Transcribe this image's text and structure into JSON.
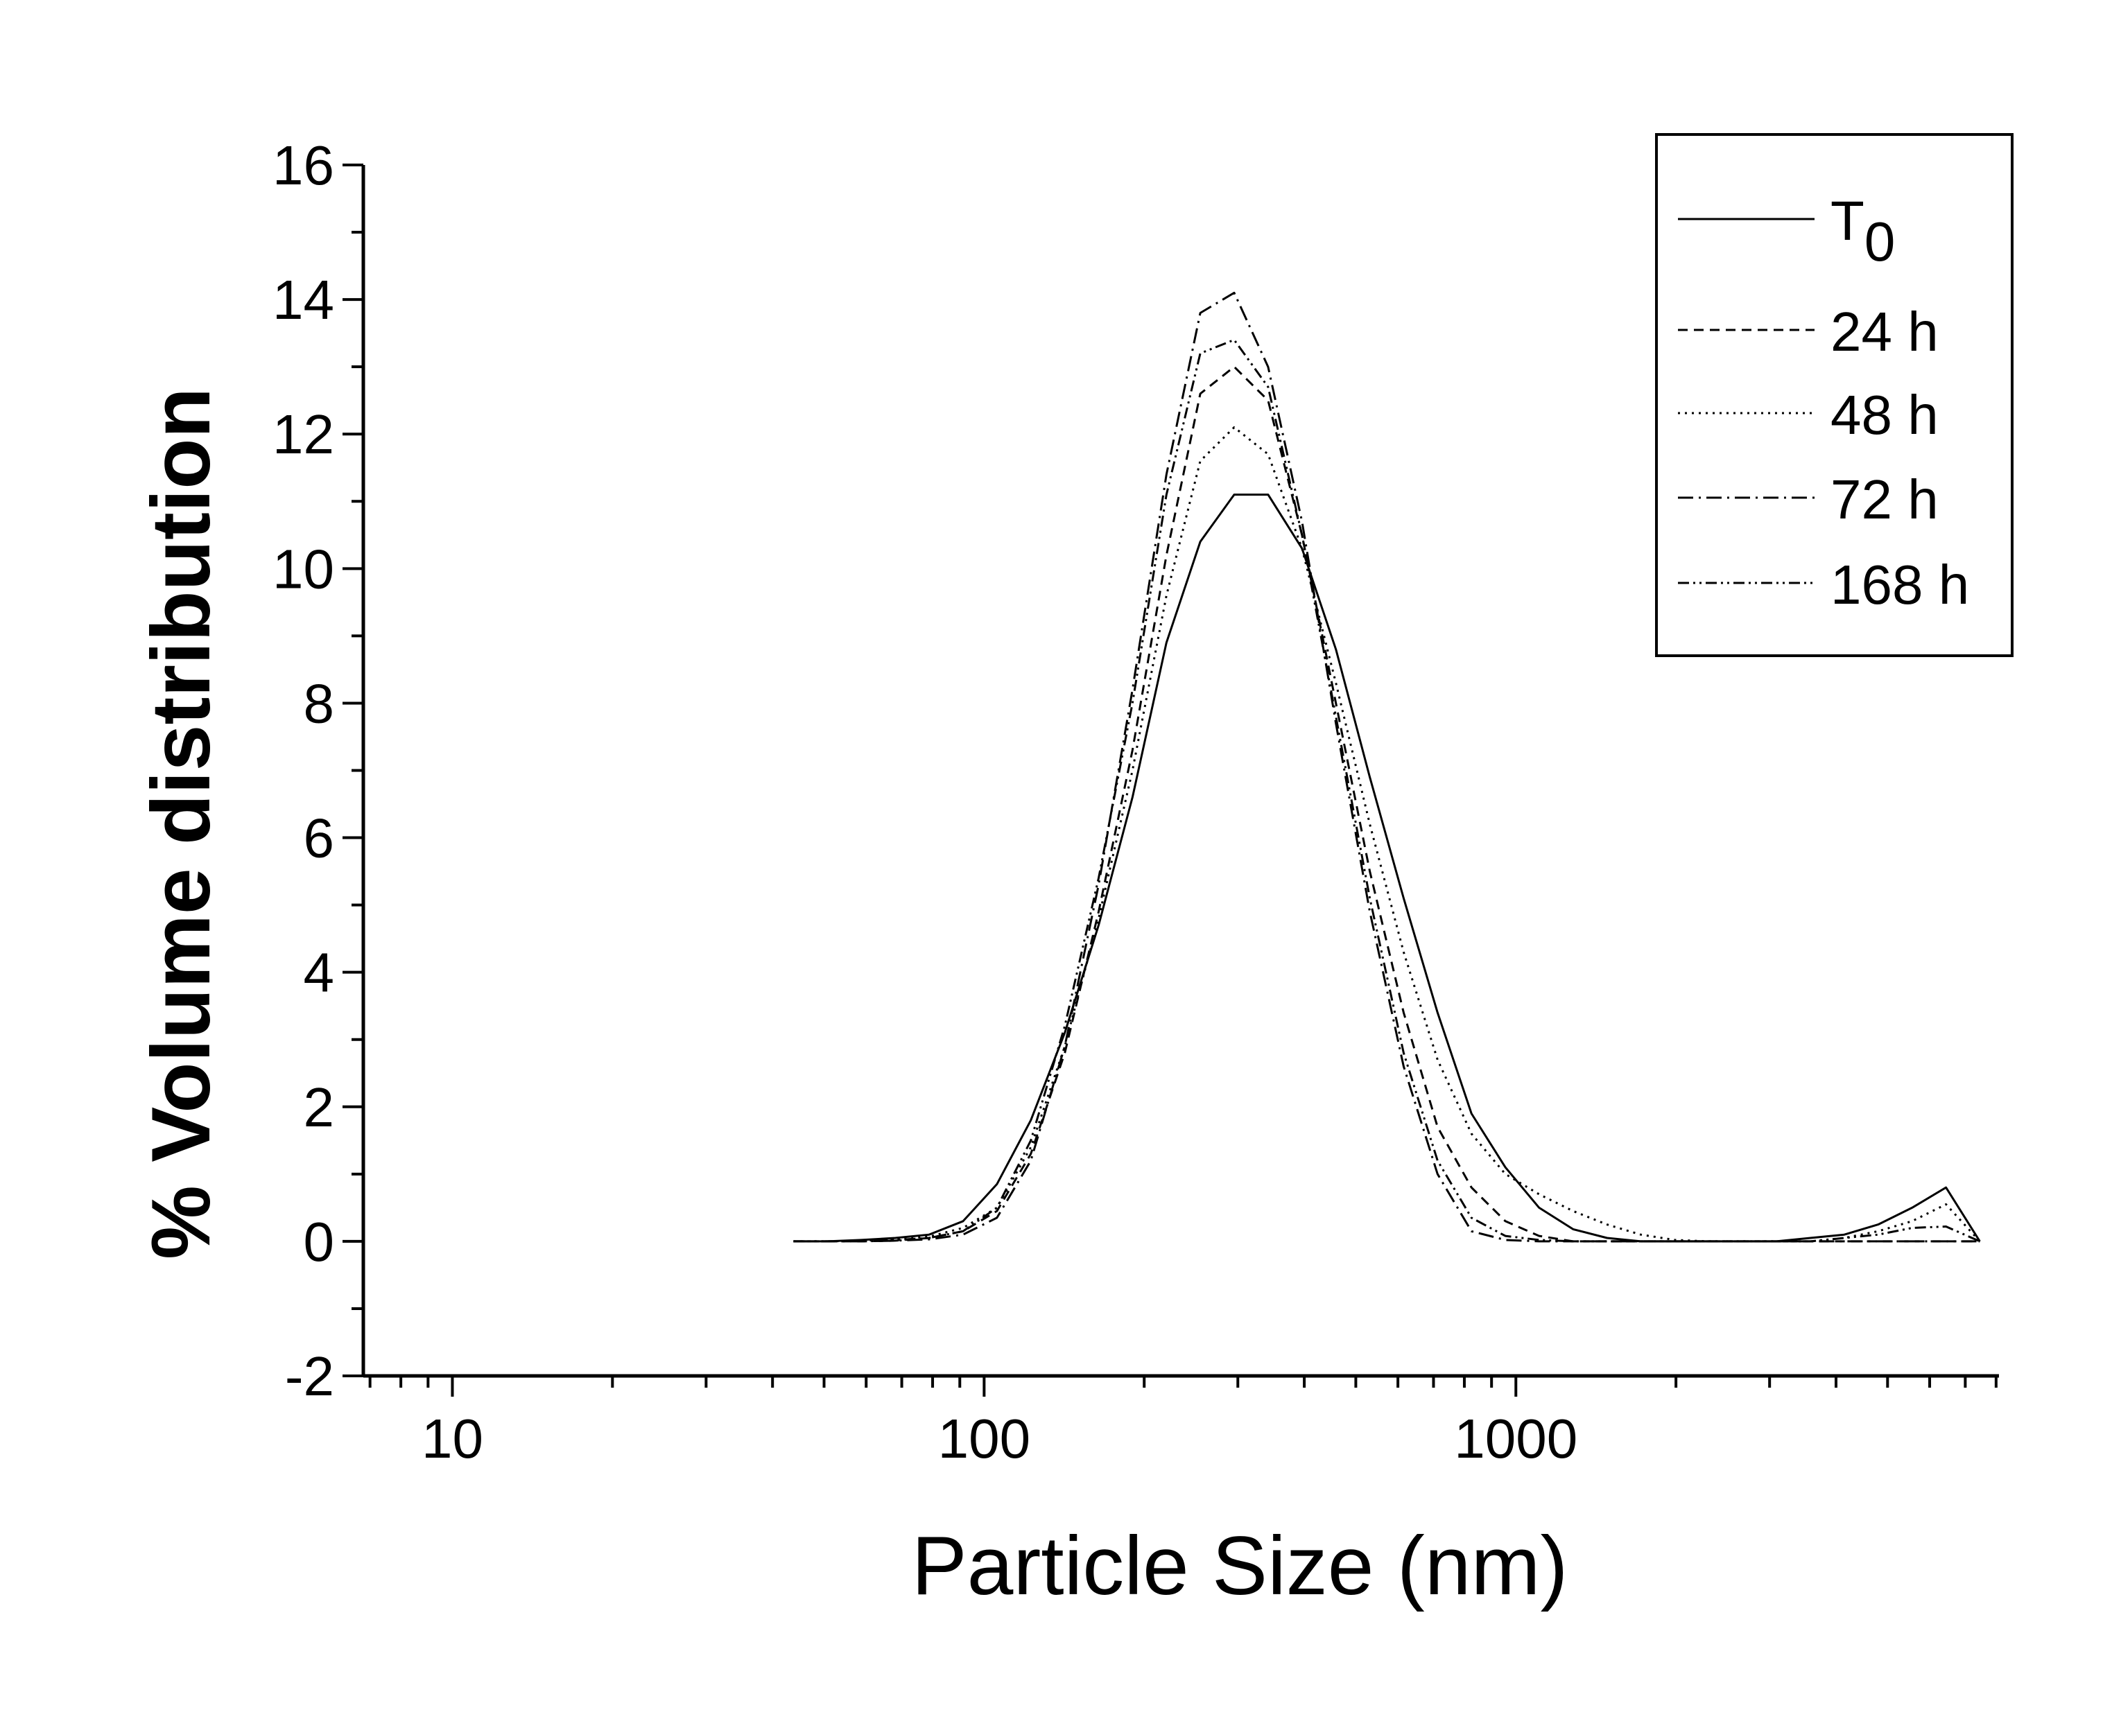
{
  "chart_data": {
    "type": "line",
    "title": "",
    "xlabel": "Particle Size (nm)",
    "ylabel": "% Volume distribution",
    "x_scale": "log",
    "xlim": [
      6.8,
      8100
    ],
    "ylim": [
      -2,
      16
    ],
    "x_ticks": [
      10,
      100,
      1000
    ],
    "x_tick_labels": [
      "10",
      "100",
      "1000"
    ],
    "y_ticks": [
      -2,
      0,
      2,
      4,
      6,
      8,
      10,
      12,
      14,
      16
    ],
    "y_tick_labels": [
      "-2",
      "0",
      "2",
      "4",
      "6",
      "8",
      "10",
      "12",
      "14",
      "16"
    ],
    "grid": false,
    "legend_position": "top-right",
    "x": [
      43.8,
      50.8,
      58.8,
      68.1,
      78.8,
      91.3,
      105.7,
      122.4,
      141.8,
      164.2,
      190.1,
      220.2,
      255,
      295.3,
      342,
      396.1,
      458.7,
      531.2,
      615.1,
      712.4,
      825,
      955.4,
      1106,
      1281,
      1484,
      1718,
      1990,
      2305,
      2669,
      3091,
      3580,
      4145,
      4801,
      5560,
      6439,
      7456
    ],
    "series": [
      {
        "name": "T0",
        "name_main": "T",
        "name_sub": "0",
        "dash": "",
        "values": [
          0,
          0,
          0.02,
          0.05,
          0.1,
          0.3,
          0.85,
          1.8,
          3.1,
          4.7,
          6.6,
          8.9,
          10.4,
          11.1,
          11.1,
          10.3,
          8.8,
          6.9,
          5.1,
          3.4,
          1.9,
          1.1,
          0.5,
          0.18,
          0.05,
          0,
          0,
          0,
          0,
          0,
          0.05,
          0.1,
          0.25,
          0.5,
          0.8,
          0
        ]
      },
      {
        "name": "24 h",
        "dash": "14,9",
        "values": [
          0,
          0,
          0,
          0.01,
          0.05,
          0.15,
          0.45,
          1.3,
          2.8,
          4.9,
          7.3,
          10.2,
          12.6,
          13.0,
          12.5,
          10.5,
          8.0,
          5.5,
          3.4,
          1.7,
          0.8,
          0.3,
          0.08,
          0,
          0,
          0,
          0,
          0,
          0,
          0,
          0,
          0,
          0,
          0,
          0,
          0
        ]
      },
      {
        "name": "48 h",
        "dash": "3,7",
        "values": [
          0,
          0,
          0.01,
          0.03,
          0.07,
          0.2,
          0.5,
          1.4,
          2.9,
          4.8,
          7.0,
          9.6,
          11.6,
          12.1,
          11.7,
          10.3,
          8.3,
          6.2,
          4.3,
          2.7,
          1.6,
          1.0,
          0.7,
          0.45,
          0.25,
          0.1,
          0.02,
          0,
          0,
          0,
          0,
          0.05,
          0.15,
          0.3,
          0.55,
          0
        ]
      },
      {
        "name": "72 h",
        "dash": "22,8,3,8",
        "values": [
          0,
          0,
          0,
          0.01,
          0.03,
          0.1,
          0.35,
          1.2,
          2.9,
          5.3,
          8.2,
          11.4,
          13.8,
          14.1,
          13.0,
          10.7,
          7.7,
          4.9,
          2.6,
          1.0,
          0.15,
          0.02,
          0,
          0,
          0,
          0,
          0,
          0,
          0,
          0,
          0,
          0,
          0,
          0,
          0,
          0
        ]
      },
      {
        "name": "168 h",
        "dash": "16,6,3,6,3,6",
        "values": [
          0,
          0,
          0.01,
          0.02,
          0.05,
          0.15,
          0.5,
          1.5,
          3.2,
          5.4,
          8.0,
          11.1,
          13.2,
          13.4,
          12.7,
          10.5,
          7.8,
          5.1,
          2.8,
          1.2,
          0.35,
          0.08,
          0.02,
          0,
          0,
          0,
          0,
          0,
          0,
          0,
          0,
          0.05,
          0.1,
          0.2,
          0.22,
          0
        ]
      }
    ]
  }
}
